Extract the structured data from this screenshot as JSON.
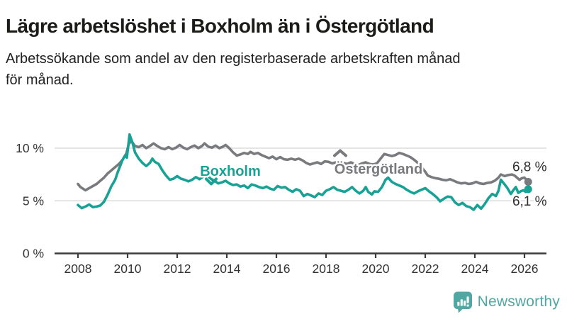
{
  "header": {
    "title": "Lägre arbetslöshet i Boxholm än i Östergötland",
    "subtitle_lines": [
      "Arbetssökande som andel av den registerbaserade arbetskraften månad",
      "för månad."
    ]
  },
  "chart_data": {
    "type": "line",
    "title": "Lägre arbetslöshet i Boxholm än i Östergötland",
    "subtitle": "Arbetssökande som andel av den registerbaserade arbetskraften månad för månad.",
    "grid": true,
    "legend_position": "inline-labels",
    "xlim": [
      2008,
      2026.9
    ],
    "ylim": [
      0,
      11.8
    ],
    "x_axis": {
      "ticks": [
        "2008",
        "2010",
        "2012",
        "2014",
        "2016",
        "2018",
        "2020",
        "2022",
        "2024",
        "2026"
      ]
    },
    "y_axis": {
      "ticks": [
        {
          "value": 0,
          "label": "0 %"
        },
        {
          "value": 5,
          "label": "5 %"
        },
        {
          "value": 10,
          "label": "10 %"
        }
      ]
    },
    "style": {
      "grid_color": "#dbdbdb",
      "axis_color": "#3c3c3c",
      "tick_text_color": "#333333",
      "value_label_color": "#2f2f2f"
    },
    "series": [
      {
        "name": "Östergötland",
        "color": "#797a7e",
        "end_label": "6,8 %",
        "points": [
          [
            2008.0,
            6.6
          ],
          [
            2008.1,
            6.3
          ],
          [
            2008.3,
            6.0
          ],
          [
            2008.45,
            6.2
          ],
          [
            2008.6,
            6.4
          ],
          [
            2008.75,
            6.6
          ],
          [
            2008.9,
            6.9
          ],
          [
            2009.05,
            7.2
          ],
          [
            2009.2,
            7.6
          ],
          [
            2009.35,
            7.9
          ],
          [
            2009.5,
            8.2
          ],
          [
            2009.65,
            8.5
          ],
          [
            2009.8,
            8.9
          ],
          [
            2009.95,
            9.5
          ],
          [
            2010.05,
            10.4
          ],
          [
            2010.15,
            10.7
          ],
          [
            2010.3,
            10.2
          ],
          [
            2010.45,
            10.1
          ],
          [
            2010.6,
            10.3
          ],
          [
            2010.75,
            10.0
          ],
          [
            2010.9,
            10.2
          ],
          [
            2011.05,
            10.45
          ],
          [
            2011.2,
            10.2
          ],
          [
            2011.35,
            10.0
          ],
          [
            2011.5,
            9.9
          ],
          [
            2011.65,
            10.1
          ],
          [
            2011.8,
            9.9
          ],
          [
            2011.95,
            10.05
          ],
          [
            2012.1,
            10.3
          ],
          [
            2012.25,
            10.05
          ],
          [
            2012.4,
            9.9
          ],
          [
            2012.55,
            10.1
          ],
          [
            2012.7,
            10.25
          ],
          [
            2012.85,
            10.0
          ],
          [
            2013.0,
            10.2
          ],
          [
            2013.1,
            10.45
          ],
          [
            2013.25,
            10.15
          ],
          [
            2013.4,
            10.05
          ],
          [
            2013.55,
            10.25
          ],
          [
            2013.7,
            10.0
          ],
          [
            2013.85,
            10.15
          ],
          [
            2013.95,
            10.3
          ],
          [
            2014.1,
            10.0
          ],
          [
            2014.25,
            9.6
          ],
          [
            2014.4,
            9.3
          ],
          [
            2014.55,
            9.4
          ],
          [
            2014.7,
            9.55
          ],
          [
            2014.85,
            9.45
          ],
          [
            2014.95,
            9.65
          ],
          [
            2015.1,
            9.45
          ],
          [
            2015.25,
            9.55
          ],
          [
            2015.4,
            9.35
          ],
          [
            2015.55,
            9.2
          ],
          [
            2015.7,
            9.05
          ],
          [
            2015.85,
            9.2
          ],
          [
            2016.0,
            8.95
          ],
          [
            2016.15,
            9.15
          ],
          [
            2016.3,
            8.95
          ],
          [
            2016.45,
            8.9
          ],
          [
            2016.6,
            9.0
          ],
          [
            2016.75,
            8.9
          ],
          [
            2016.9,
            9.0
          ],
          [
            2017.05,
            8.85
          ],
          [
            2017.2,
            8.6
          ],
          [
            2017.35,
            8.45
          ],
          [
            2017.5,
            8.55
          ],
          [
            2017.65,
            8.65
          ],
          [
            2017.8,
            8.5
          ],
          [
            2017.95,
            8.75
          ],
          [
            2018.1,
            8.7
          ],
          [
            2018.25,
            8.55
          ],
          [
            2018.4,
            8.65
          ],
          [
            2018.55,
            8.75
          ],
          [
            2018.7,
            8.6
          ],
          [
            2018.85,
            8.5
          ],
          [
            2019.0,
            8.65
          ],
          [
            2019.15,
            8.5
          ],
          [
            2019.3,
            8.4
          ],
          [
            2019.45,
            8.55
          ],
          [
            2019.6,
            8.65
          ],
          [
            2019.75,
            8.5
          ],
          [
            2019.9,
            8.45
          ],
          [
            2020.05,
            8.55
          ],
          [
            2020.2,
            9.0
          ],
          [
            2020.35,
            9.45
          ],
          [
            2020.5,
            9.35
          ],
          [
            2020.65,
            9.25
          ],
          [
            2020.8,
            9.35
          ],
          [
            2020.95,
            9.55
          ],
          [
            2021.1,
            9.45
          ],
          [
            2021.25,
            9.3
          ],
          [
            2021.4,
            9.15
          ],
          [
            2021.55,
            8.9
          ],
          [
            2021.7,
            8.6
          ],
          [
            2021.85,
            8.2
          ],
          [
            2022.0,
            7.75
          ],
          [
            2022.1,
            7.4
          ],
          [
            2022.25,
            7.25
          ],
          [
            2022.4,
            7.15
          ],
          [
            2022.55,
            7.1
          ],
          [
            2022.7,
            7.0
          ],
          [
            2022.85,
            6.95
          ],
          [
            2023.0,
            7.05
          ],
          [
            2023.15,
            6.9
          ],
          [
            2023.3,
            6.75
          ],
          [
            2023.45,
            6.65
          ],
          [
            2023.6,
            6.7
          ],
          [
            2023.75,
            6.6
          ],
          [
            2023.9,
            6.65
          ],
          [
            2024.05,
            6.8
          ],
          [
            2024.2,
            6.65
          ],
          [
            2024.35,
            6.6
          ],
          [
            2024.5,
            6.7
          ],
          [
            2024.65,
            6.75
          ],
          [
            2024.8,
            6.9
          ],
          [
            2024.95,
            7.2
          ],
          [
            2025.05,
            7.5
          ],
          [
            2025.2,
            7.35
          ],
          [
            2025.35,
            7.45
          ],
          [
            2025.5,
            7.5
          ],
          [
            2025.6,
            7.4
          ],
          [
            2025.7,
            7.2
          ],
          [
            2025.8,
            7.0
          ],
          [
            2025.9,
            7.15
          ],
          [
            2026.0,
            7.2
          ],
          [
            2026.08,
            7.0
          ],
          [
            2026.15,
            6.8
          ]
        ]
      },
      {
        "name": "Boxholm",
        "color": "#18a296",
        "end_label": "6,1 %",
        "points": [
          [
            2008.0,
            4.6
          ],
          [
            2008.15,
            4.3
          ],
          [
            2008.3,
            4.45
          ],
          [
            2008.45,
            4.65
          ],
          [
            2008.6,
            4.4
          ],
          [
            2008.75,
            4.45
          ],
          [
            2008.9,
            4.55
          ],
          [
            2009.05,
            4.9
          ],
          [
            2009.2,
            5.6
          ],
          [
            2009.35,
            6.4
          ],
          [
            2009.5,
            7.0
          ],
          [
            2009.6,
            7.7
          ],
          [
            2009.7,
            8.3
          ],
          [
            2009.8,
            8.9
          ],
          [
            2009.9,
            9.3
          ],
          [
            2009.97,
            9.1
          ],
          [
            2010.08,
            11.3
          ],
          [
            2010.2,
            10.5
          ],
          [
            2010.3,
            9.6
          ],
          [
            2010.45,
            9.0
          ],
          [
            2010.6,
            8.6
          ],
          [
            2010.75,
            8.3
          ],
          [
            2010.9,
            8.6
          ],
          [
            2011.0,
            9.0
          ],
          [
            2011.1,
            8.7
          ],
          [
            2011.25,
            8.5
          ],
          [
            2011.4,
            7.9
          ],
          [
            2011.55,
            7.4
          ],
          [
            2011.7,
            7.0
          ],
          [
            2011.85,
            7.1
          ],
          [
            2012.0,
            7.35
          ],
          [
            2012.15,
            7.1
          ],
          [
            2012.3,
            7.0
          ],
          [
            2012.45,
            6.85
          ],
          [
            2012.6,
            7.0
          ],
          [
            2012.75,
            7.25
          ],
          [
            2012.9,
            7.05
          ],
          [
            2013.05,
            7.3
          ],
          [
            2013.2,
            7.45
          ],
          [
            2013.35,
            7.1
          ],
          [
            2013.5,
            6.9
          ],
          [
            2013.65,
            6.65
          ],
          [
            2013.8,
            6.75
          ],
          [
            2013.95,
            6.9
          ],
          [
            2014.1,
            6.65
          ],
          [
            2014.25,
            6.5
          ],
          [
            2014.4,
            6.55
          ],
          [
            2014.55,
            6.35
          ],
          [
            2014.7,
            6.45
          ],
          [
            2014.85,
            6.2
          ],
          [
            2015.0,
            6.55
          ],
          [
            2015.15,
            6.45
          ],
          [
            2015.3,
            6.3
          ],
          [
            2015.45,
            6.2
          ],
          [
            2015.6,
            6.35
          ],
          [
            2015.75,
            6.15
          ],
          [
            2015.9,
            6.05
          ],
          [
            2016.05,
            6.4
          ],
          [
            2016.2,
            6.25
          ],
          [
            2016.35,
            6.3
          ],
          [
            2016.5,
            6.05
          ],
          [
            2016.65,
            5.85
          ],
          [
            2016.8,
            6.1
          ],
          [
            2016.95,
            5.95
          ],
          [
            2017.1,
            5.45
          ],
          [
            2017.25,
            5.65
          ],
          [
            2017.4,
            5.5
          ],
          [
            2017.55,
            5.35
          ],
          [
            2017.7,
            5.7
          ],
          [
            2017.85,
            5.55
          ],
          [
            2018.0,
            5.95
          ],
          [
            2018.15,
            6.1
          ],
          [
            2018.3,
            6.3
          ],
          [
            2018.45,
            6.05
          ],
          [
            2018.6,
            5.95
          ],
          [
            2018.75,
            5.85
          ],
          [
            2018.9,
            6.05
          ],
          [
            2019.05,
            6.3
          ],
          [
            2019.2,
            5.95
          ],
          [
            2019.35,
            5.7
          ],
          [
            2019.5,
            5.95
          ],
          [
            2019.6,
            6.3
          ],
          [
            2019.7,
            5.85
          ],
          [
            2019.85,
            5.6
          ],
          [
            2019.95,
            5.9
          ],
          [
            2020.1,
            5.85
          ],
          [
            2020.25,
            6.3
          ],
          [
            2020.4,
            7.0
          ],
          [
            2020.5,
            7.2
          ],
          [
            2020.65,
            6.8
          ],
          [
            2020.8,
            6.6
          ],
          [
            2020.95,
            6.45
          ],
          [
            2021.1,
            6.3
          ],
          [
            2021.25,
            6.05
          ],
          [
            2021.4,
            5.85
          ],
          [
            2021.55,
            5.7
          ],
          [
            2021.7,
            5.9
          ],
          [
            2021.85,
            6.05
          ],
          [
            2022.0,
            6.2
          ],
          [
            2022.15,
            5.9
          ],
          [
            2022.3,
            5.65
          ],
          [
            2022.45,
            5.35
          ],
          [
            2022.6,
            4.95
          ],
          [
            2022.75,
            5.2
          ],
          [
            2022.9,
            5.4
          ],
          [
            2023.05,
            5.35
          ],
          [
            2023.2,
            4.85
          ],
          [
            2023.35,
            4.6
          ],
          [
            2023.5,
            4.8
          ],
          [
            2023.65,
            4.5
          ],
          [
            2023.8,
            4.4
          ],
          [
            2023.95,
            4.15
          ],
          [
            2024.1,
            4.6
          ],
          [
            2024.25,
            4.25
          ],
          [
            2024.4,
            4.7
          ],
          [
            2024.55,
            5.25
          ],
          [
            2024.7,
            5.65
          ],
          [
            2024.85,
            5.45
          ],
          [
            2024.95,
            5.95
          ],
          [
            2025.05,
            7.0
          ],
          [
            2025.15,
            6.7
          ],
          [
            2025.3,
            6.25
          ],
          [
            2025.45,
            5.65
          ],
          [
            2025.55,
            6.0
          ],
          [
            2025.65,
            6.3
          ],
          [
            2025.75,
            5.75
          ],
          [
            2025.85,
            5.9
          ],
          [
            2025.95,
            6.0
          ],
          [
            2026.05,
            5.85
          ],
          [
            2026.15,
            6.1
          ]
        ]
      }
    ]
  },
  "footer": {
    "brand": "Newsworthy"
  }
}
